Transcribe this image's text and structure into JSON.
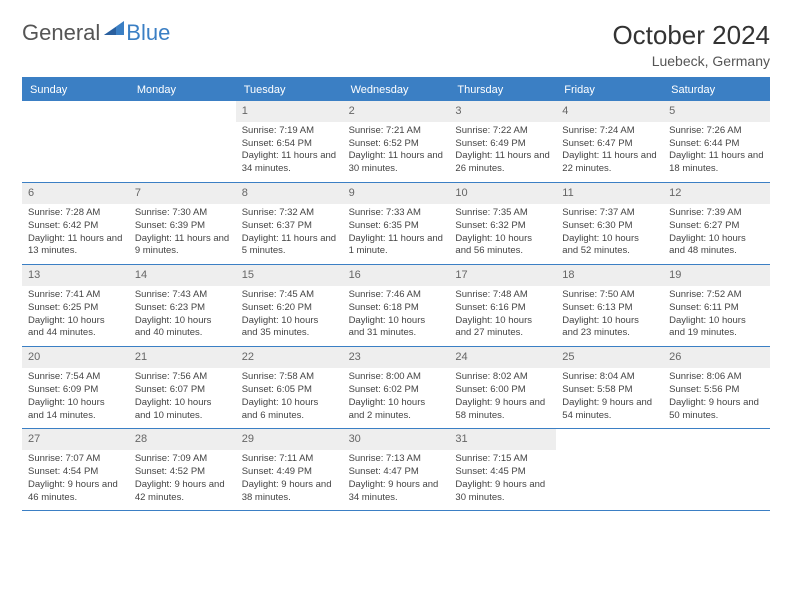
{
  "logo": {
    "text1": "General",
    "text2": "Blue"
  },
  "title": "October 2024",
  "location": "Luebeck, Germany",
  "colors": {
    "accent": "#3b7fc4",
    "daynum_bg": "#eeeeee",
    "text": "#333333",
    "bg": "#ffffff"
  },
  "day_names": [
    "Sunday",
    "Monday",
    "Tuesday",
    "Wednesday",
    "Thursday",
    "Friday",
    "Saturday"
  ],
  "weeks": [
    [
      {
        "empty": true
      },
      {
        "empty": true
      },
      {
        "n": "1",
        "sunrise": "7:19 AM",
        "sunset": "6:54 PM",
        "daylight": "11 hours and 34 minutes."
      },
      {
        "n": "2",
        "sunrise": "7:21 AM",
        "sunset": "6:52 PM",
        "daylight": "11 hours and 30 minutes."
      },
      {
        "n": "3",
        "sunrise": "7:22 AM",
        "sunset": "6:49 PM",
        "daylight": "11 hours and 26 minutes."
      },
      {
        "n": "4",
        "sunrise": "7:24 AM",
        "sunset": "6:47 PM",
        "daylight": "11 hours and 22 minutes."
      },
      {
        "n": "5",
        "sunrise": "7:26 AM",
        "sunset": "6:44 PM",
        "daylight": "11 hours and 18 minutes."
      }
    ],
    [
      {
        "n": "6",
        "sunrise": "7:28 AM",
        "sunset": "6:42 PM",
        "daylight": "11 hours and 13 minutes."
      },
      {
        "n": "7",
        "sunrise": "7:30 AM",
        "sunset": "6:39 PM",
        "daylight": "11 hours and 9 minutes."
      },
      {
        "n": "8",
        "sunrise": "7:32 AM",
        "sunset": "6:37 PM",
        "daylight": "11 hours and 5 minutes."
      },
      {
        "n": "9",
        "sunrise": "7:33 AM",
        "sunset": "6:35 PM",
        "daylight": "11 hours and 1 minute."
      },
      {
        "n": "10",
        "sunrise": "7:35 AM",
        "sunset": "6:32 PM",
        "daylight": "10 hours and 56 minutes."
      },
      {
        "n": "11",
        "sunrise": "7:37 AM",
        "sunset": "6:30 PM",
        "daylight": "10 hours and 52 minutes."
      },
      {
        "n": "12",
        "sunrise": "7:39 AM",
        "sunset": "6:27 PM",
        "daylight": "10 hours and 48 minutes."
      }
    ],
    [
      {
        "n": "13",
        "sunrise": "7:41 AM",
        "sunset": "6:25 PM",
        "daylight": "10 hours and 44 minutes."
      },
      {
        "n": "14",
        "sunrise": "7:43 AM",
        "sunset": "6:23 PM",
        "daylight": "10 hours and 40 minutes."
      },
      {
        "n": "15",
        "sunrise": "7:45 AM",
        "sunset": "6:20 PM",
        "daylight": "10 hours and 35 minutes."
      },
      {
        "n": "16",
        "sunrise": "7:46 AM",
        "sunset": "6:18 PM",
        "daylight": "10 hours and 31 minutes."
      },
      {
        "n": "17",
        "sunrise": "7:48 AM",
        "sunset": "6:16 PM",
        "daylight": "10 hours and 27 minutes."
      },
      {
        "n": "18",
        "sunrise": "7:50 AM",
        "sunset": "6:13 PM",
        "daylight": "10 hours and 23 minutes."
      },
      {
        "n": "19",
        "sunrise": "7:52 AM",
        "sunset": "6:11 PM",
        "daylight": "10 hours and 19 minutes."
      }
    ],
    [
      {
        "n": "20",
        "sunrise": "7:54 AM",
        "sunset": "6:09 PM",
        "daylight": "10 hours and 14 minutes."
      },
      {
        "n": "21",
        "sunrise": "7:56 AM",
        "sunset": "6:07 PM",
        "daylight": "10 hours and 10 minutes."
      },
      {
        "n": "22",
        "sunrise": "7:58 AM",
        "sunset": "6:05 PM",
        "daylight": "10 hours and 6 minutes."
      },
      {
        "n": "23",
        "sunrise": "8:00 AM",
        "sunset": "6:02 PM",
        "daylight": "10 hours and 2 minutes."
      },
      {
        "n": "24",
        "sunrise": "8:02 AM",
        "sunset": "6:00 PM",
        "daylight": "9 hours and 58 minutes."
      },
      {
        "n": "25",
        "sunrise": "8:04 AM",
        "sunset": "5:58 PM",
        "daylight": "9 hours and 54 minutes."
      },
      {
        "n": "26",
        "sunrise": "8:06 AM",
        "sunset": "5:56 PM",
        "daylight": "9 hours and 50 minutes."
      }
    ],
    [
      {
        "n": "27",
        "sunrise": "7:07 AM",
        "sunset": "4:54 PM",
        "daylight": "9 hours and 46 minutes."
      },
      {
        "n": "28",
        "sunrise": "7:09 AM",
        "sunset": "4:52 PM",
        "daylight": "9 hours and 42 minutes."
      },
      {
        "n": "29",
        "sunrise": "7:11 AM",
        "sunset": "4:49 PM",
        "daylight": "9 hours and 38 minutes."
      },
      {
        "n": "30",
        "sunrise": "7:13 AM",
        "sunset": "4:47 PM",
        "daylight": "9 hours and 34 minutes."
      },
      {
        "n": "31",
        "sunrise": "7:15 AM",
        "sunset": "4:45 PM",
        "daylight": "9 hours and 30 minutes."
      },
      {
        "empty": true
      },
      {
        "empty": true
      }
    ]
  ],
  "labels": {
    "sunrise": "Sunrise:",
    "sunset": "Sunset:",
    "daylight": "Daylight:"
  }
}
